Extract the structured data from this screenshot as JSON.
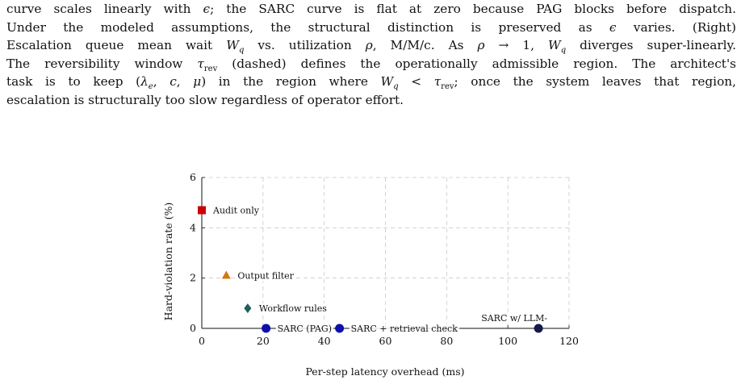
{
  "caption": {
    "lines": [
      "curve scales linearly with ϵ; the SARC curve is flat at zero because PAG blocks before dispatch.",
      "Under the modeled assumptions, the structural distinction is preserved as ϵ varies. (Right)",
      "Escalation queue mean wait W_q vs. utilization ρ, M/M/c. As ρ → 1, W_q diverges super-linearly.",
      "The reversibility window τ_rev (dashed) defines the operationally admissible region. The architect's",
      "task is to keep (λ_e, c, μ) in the region where W_q < τ_rev; once the system leaves that region,",
      "escalation is structurally too slow regardless of operator effort."
    ]
  },
  "chart_data": {
    "type": "scatter",
    "xlabel": "Per-step latency overhead (ms)",
    "ylabel": "Hard-violation rate (%)",
    "xlim": [
      0,
      120
    ],
    "ylim": [
      0,
      6
    ],
    "xticks": [
      0,
      20,
      40,
      60,
      80,
      100,
      120
    ],
    "yticks": [
      0,
      2,
      4,
      6
    ],
    "grid": true,
    "gridStyle": "dashed",
    "points": [
      {
        "label": "Audit only",
        "x": 0,
        "y": 4.7,
        "marker": "square",
        "color": "#cc0000"
      },
      {
        "label": "Output filter",
        "x": 8,
        "y": 2.1,
        "marker": "triangle",
        "color": "#d07a10"
      },
      {
        "label": "Workflow rules",
        "x": 15,
        "y": 0.8,
        "marker": "diamond",
        "color": "#1f5f5a"
      },
      {
        "label": "SARC (PAG)",
        "x": 21,
        "y": 0.0,
        "marker": "circle",
        "color": "#1010aa"
      },
      {
        "label": "SARC + retrieval check",
        "x": 45,
        "y": 0.0,
        "marker": "circle",
        "color": "#1010aa"
      },
      {
        "label": "SARC w/ LLM-",
        "x": 110,
        "y": 0.0,
        "marker": "circle",
        "color": "#14194a"
      }
    ]
  }
}
